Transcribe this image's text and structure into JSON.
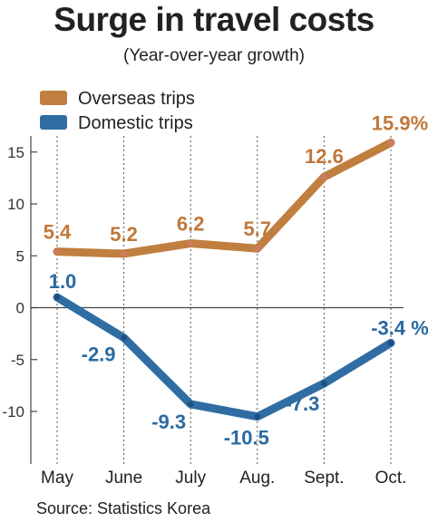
{
  "title": "Surge in travel costs",
  "subtitle": "(Year-over-year growth)",
  "source": "Source: Statistics Korea",
  "colors": {
    "overseas": "#c07f3f",
    "overseas_label": "#c0783a",
    "overseas_marker": "#d27a6a",
    "domestic": "#2f6da3",
    "domestic_label": "#2a6aa2",
    "domestic_marker": "#1f4f7f",
    "axis": "#444444",
    "guide": "#555555"
  },
  "chart_data": {
    "type": "line",
    "categories": [
      "May",
      "June",
      "July",
      "Aug.",
      "Sept.",
      "Oct."
    ],
    "series": [
      {
        "name": "Overseas trips",
        "values": [
          5.4,
          5.2,
          6.2,
          5.7,
          12.6,
          15.9
        ],
        "labels": [
          "5.4",
          "5.2",
          "6.2",
          "5.7",
          "12.6",
          "15.9%"
        ]
      },
      {
        "name": "Domestic trips",
        "values": [
          1.0,
          -2.9,
          -9.3,
          -10.5,
          -7.3,
          -3.4
        ],
        "labels": [
          "1.0",
          "-2.9",
          "-9.3",
          "-10.5",
          "-7.3",
          "-3.4 %"
        ]
      }
    ],
    "yticks": [
      15,
      10,
      5,
      0,
      -5,
      -10
    ],
    "ylim": [
      -15,
      19
    ],
    "legend": "top-left",
    "grid": false
  }
}
